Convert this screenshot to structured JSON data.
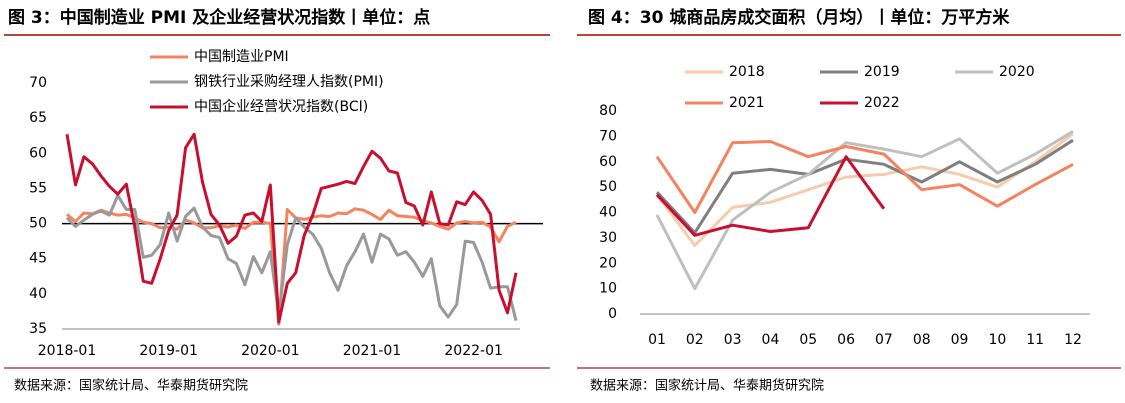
{
  "chart_data": [
    {
      "type": "line",
      "title": "图 3：中国制造业 PMI 及企业经营状况指数丨单位：点",
      "source": "数据来源：国家统计局、华泰期货研究院",
      "categories": [
        "2018-01",
        null,
        null,
        null,
        null,
        null,
        null,
        null,
        null,
        null,
        null,
        null,
        "2019-01",
        null,
        null,
        null,
        null,
        null,
        null,
        null,
        null,
        null,
        null,
        null,
        "2020-01",
        null,
        null,
        null,
        null,
        null,
        null,
        null,
        null,
        null,
        null,
        null,
        "2021-01",
        null,
        null,
        null,
        null,
        null,
        null,
        null,
        null,
        null,
        null,
        null,
        "2022-01",
        null,
        null,
        null,
        null,
        null
      ],
      "series": [
        {
          "name": "中国制造业PMI",
          "color": "#f4845f",
          "values": [
            51.3,
            50.3,
            51.5,
            51.4,
            51.9,
            51.5,
            51.2,
            51.3,
            50.8,
            50.2,
            50.0,
            49.4,
            49.5,
            49.2,
            50.5,
            50.1,
            49.4,
            49.4,
            49.7,
            49.5,
            49.8,
            49.3,
            50.2,
            50.2,
            50.0,
            35.7,
            52.0,
            50.8,
            50.6,
            50.9,
            51.1,
            51.0,
            51.5,
            51.4,
            52.1,
            51.9,
            51.3,
            50.6,
            51.9,
            51.1,
            51.0,
            50.9,
            50.4,
            50.1,
            49.6,
            49.2,
            50.1,
            50.3,
            50.1,
            50.2,
            49.5,
            47.4,
            49.6,
            50.2
          ]
        },
        {
          "name": "钢铁行业采购经理人指数(PMI)",
          "color": "#999999",
          "values": [
            50.8,
            49.6,
            50.5,
            51.3,
            51.8,
            51.2,
            54.0,
            52.0,
            52.0,
            45.2,
            45.5,
            47.0,
            51.5,
            47.5,
            51.0,
            52.2,
            49.5,
            48.3,
            48.0,
            45.0,
            44.3,
            41.3,
            45.3,
            43.0,
            46.0,
            37.0,
            47.0,
            50.8,
            49.5,
            48.5,
            46.5,
            43.0,
            40.5,
            44.0,
            46.0,
            48.5,
            44.5,
            48.5,
            47.8,
            45.5,
            46.0,
            44.5,
            42.5,
            45.0,
            38.3,
            36.7,
            38.5,
            47.5,
            47.3,
            44.5,
            40.8,
            41.0,
            41.0,
            36.2
          ]
        },
        {
          "name": "中国企业经营状况指数(BCI)",
          "color": "#c8102e",
          "values": [
            62.7,
            55.5,
            59.5,
            58.5,
            56.8,
            55.3,
            54.2,
            55.6,
            49.5,
            41.8,
            41.5,
            45.0,
            49.0,
            51.2,
            60.8,
            62.7,
            55.9,
            51.3,
            49.8,
            47.2,
            48.2,
            51.2,
            51.5,
            50.3,
            55.5,
            36.0,
            41.5,
            43.0,
            48.3,
            51.2,
            55.0,
            55.3,
            55.6,
            56.0,
            55.7,
            58.1,
            60.3,
            59.3,
            57.5,
            57.2,
            53.0,
            52.5,
            49.8,
            54.5,
            50.0,
            49.8,
            53.1,
            52.7,
            54.5,
            53.3,
            51.3,
            40.5,
            37.3,
            43.0
          ]
        }
      ],
      "hline": 50,
      "ylim": [
        35,
        70
      ],
      "yticks": [
        35,
        40,
        45,
        50,
        55,
        60,
        65,
        70
      ],
      "grid": false
    },
    {
      "type": "line",
      "title": "图 4：30 城商品房成交面积（月均）丨单位：万平方米",
      "source": "数据来源：国家统计局、华泰期货研究院",
      "categories": [
        "01",
        "02",
        "03",
        "04",
        "05",
        "06",
        "07",
        "08",
        "09",
        "10",
        "11",
        "12"
      ],
      "series": [
        {
          "name": "2018",
          "color": "#f8cbad",
          "values": [
            47,
            27,
            42,
            44,
            49,
            54,
            55,
            58,
            55,
            50,
            60,
            71
          ]
        },
        {
          "name": "2019",
          "color": "#7f7f7f",
          "values": [
            48,
            32,
            55.5,
            57,
            55,
            61,
            59,
            52,
            60,
            52,
            59,
            68.5
          ]
        },
        {
          "name": "2020",
          "color": "#bfbfbf",
          "values": [
            39,
            10,
            37,
            48,
            55,
            67.5,
            65,
            62,
            69,
            55.5,
            63,
            72
          ]
        },
        {
          "name": "2021",
          "color": "#f4845f",
          "values": [
            62,
            40,
            67.5,
            68,
            62,
            66,
            63,
            49,
            51,
            42.5,
            51,
            59
          ]
        },
        {
          "name": "2022",
          "color": "#c8102e",
          "values": [
            47,
            31,
            35,
            32.5,
            34,
            62,
            41.5,
            null,
            null,
            null,
            null,
            null
          ]
        }
      ],
      "ylim": [
        0,
        80
      ],
      "yticks": [
        0,
        10,
        20,
        30,
        40,
        50,
        60,
        70,
        80
      ],
      "grid": false
    }
  ]
}
